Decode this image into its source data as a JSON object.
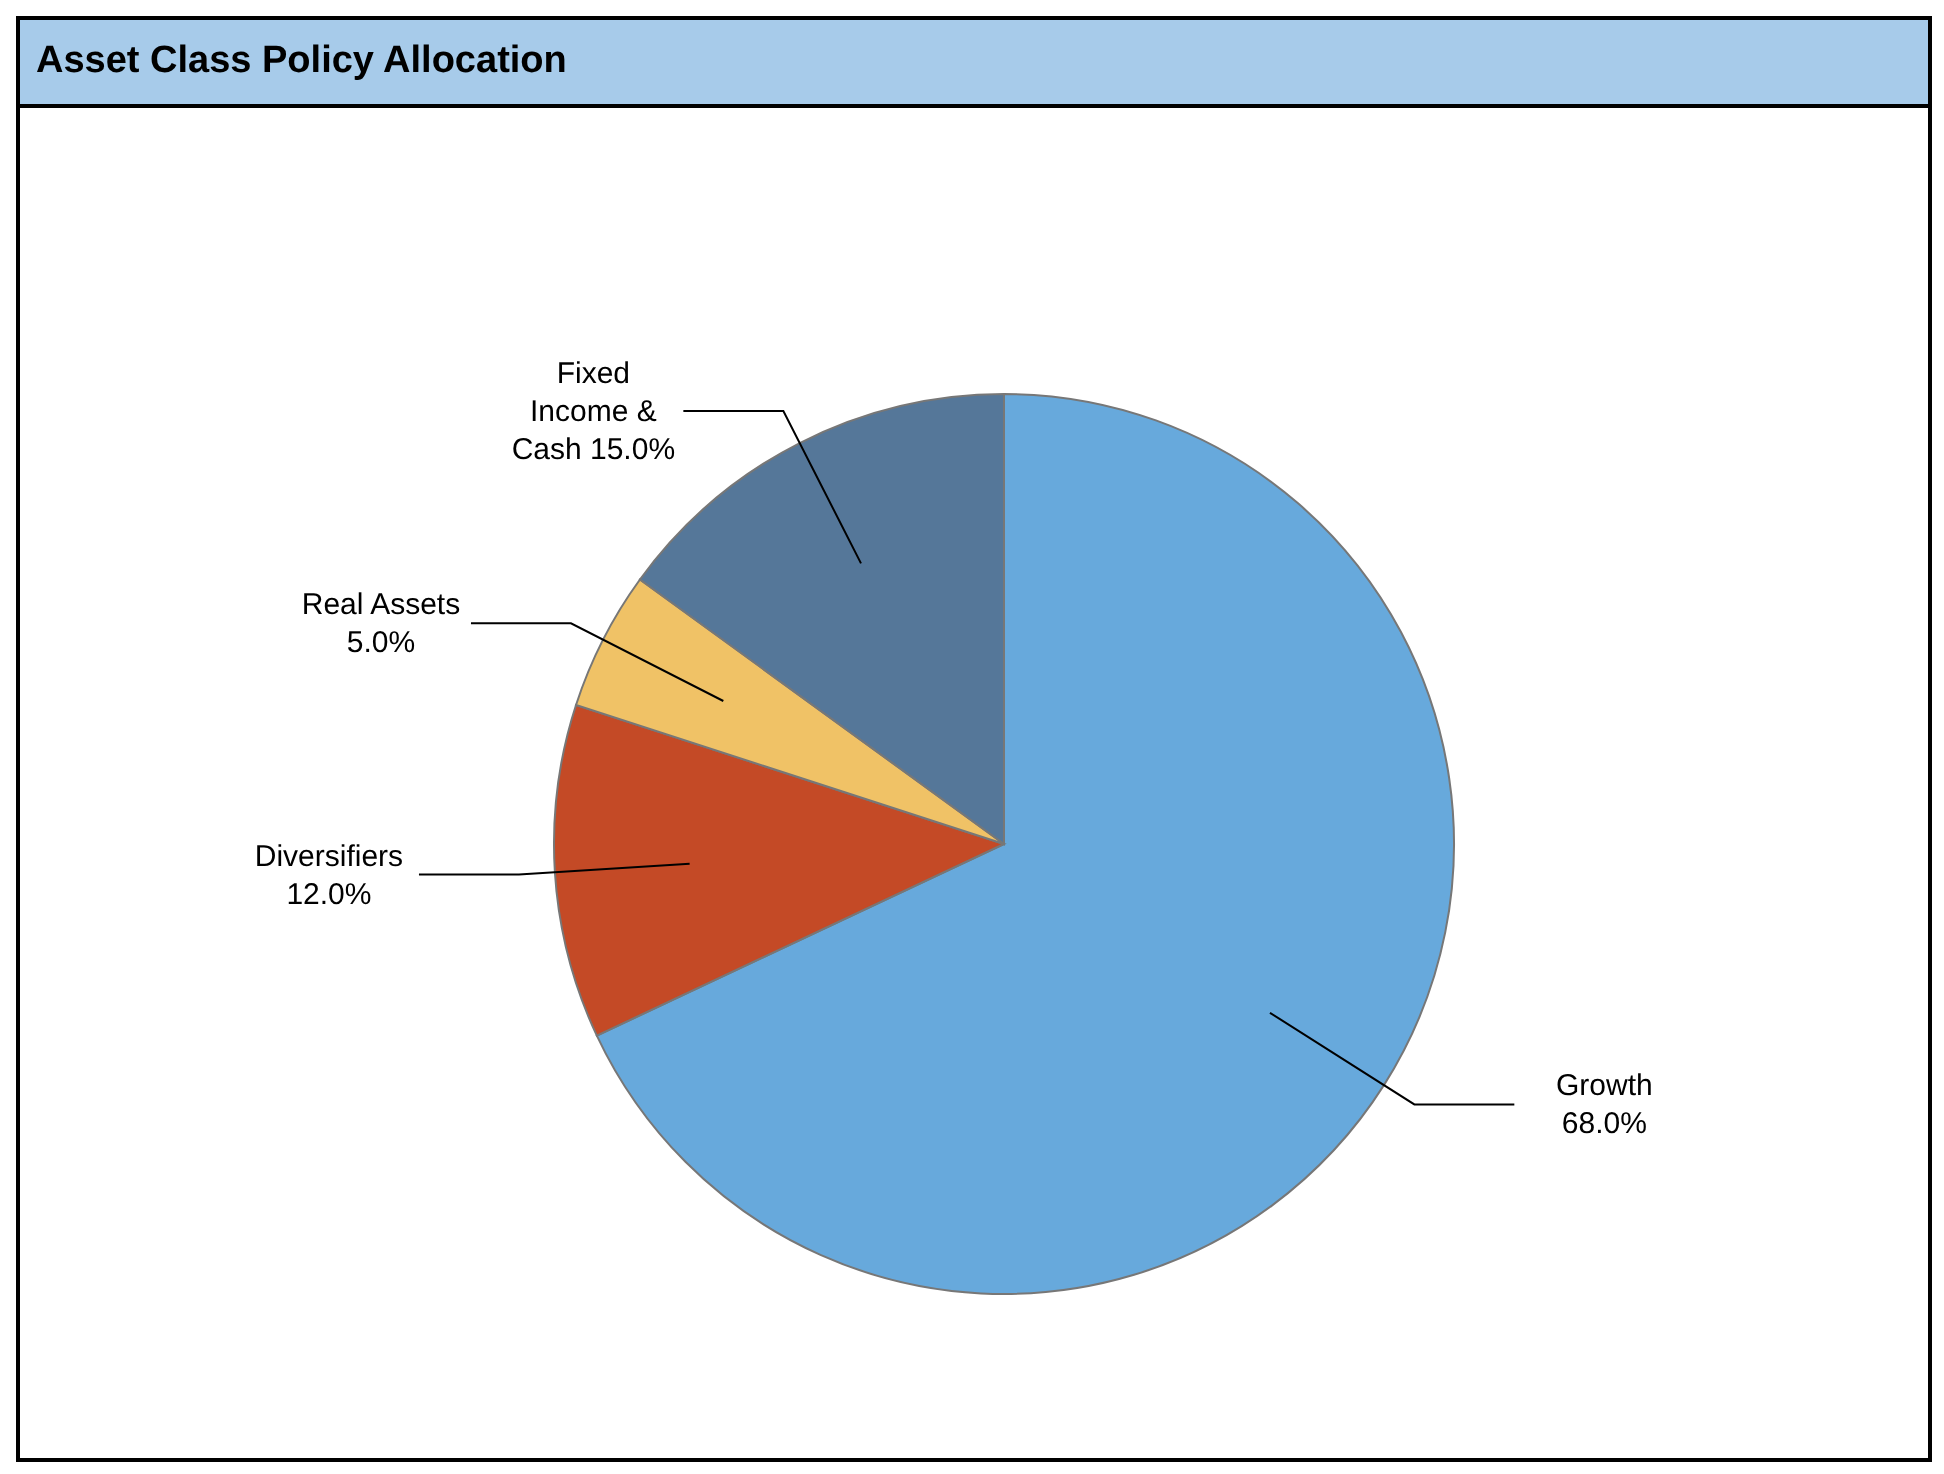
{
  "chart_data": {
    "type": "pie",
    "title": "Asset Class Policy Allocation",
    "categories": [
      "Growth",
      "Diversifiers",
      "Real Assets",
      "Fixed Income & Cash"
    ],
    "values": [
      68,
      12,
      5,
      15
    ],
    "colors": [
      "#67a9dc",
      "#c44a26",
      "#f0c266",
      "#557799"
    ],
    "value_labels": [
      "68.0%",
      "12.0%",
      "5.0%",
      "15.0%"
    ],
    "legend": false
  }
}
